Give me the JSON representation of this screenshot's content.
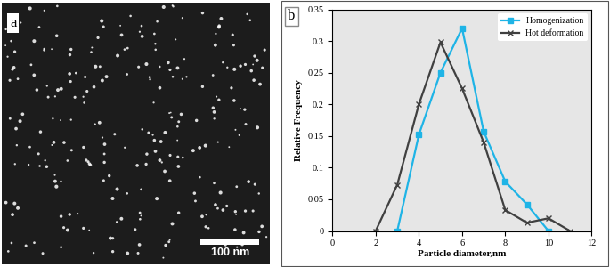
{
  "chart_data": [
    {
      "type": "image",
      "annotations": [
        "a",
        "100 nm"
      ]
    },
    {
      "type": "line",
      "annotations": [
        "b"
      ],
      "x_label": "Particle diameter,nm",
      "y_label": "Relative Frequency",
      "xlim": [
        0,
        12
      ],
      "xticks": [
        0,
        2,
        4,
        6,
        8,
        10,
        12
      ],
      "ylim": [
        0,
        0.35
      ],
      "yticks": [
        0,
        0.05,
        0.1,
        0.15,
        0.2,
        0.25,
        0.3,
        0.35
      ],
      "legend": "upper right",
      "series": [
        {
          "name": "Homogenization",
          "color": "#1fb4e6",
          "marker": "square",
          "line_style": "solid",
          "x": [
            3,
            4,
            5,
            6,
            7,
            8,
            9,
            10
          ],
          "values": [
            0,
            0.152,
            0.25,
            0.32,
            0.157,
            0.078,
            0.042,
            0
          ]
        },
        {
          "name": "Hot deformation",
          "color": "#404040",
          "marker": "x",
          "line_style": "solid",
          "x": [
            2,
            3,
            4,
            5,
            6,
            7,
            8,
            9,
            10,
            11
          ],
          "values": [
            0,
            0.073,
            0.2,
            0.298,
            0.225,
            0.14,
            0.033,
            0.013,
            0.02,
            0
          ]
        }
      ]
    }
  ]
}
